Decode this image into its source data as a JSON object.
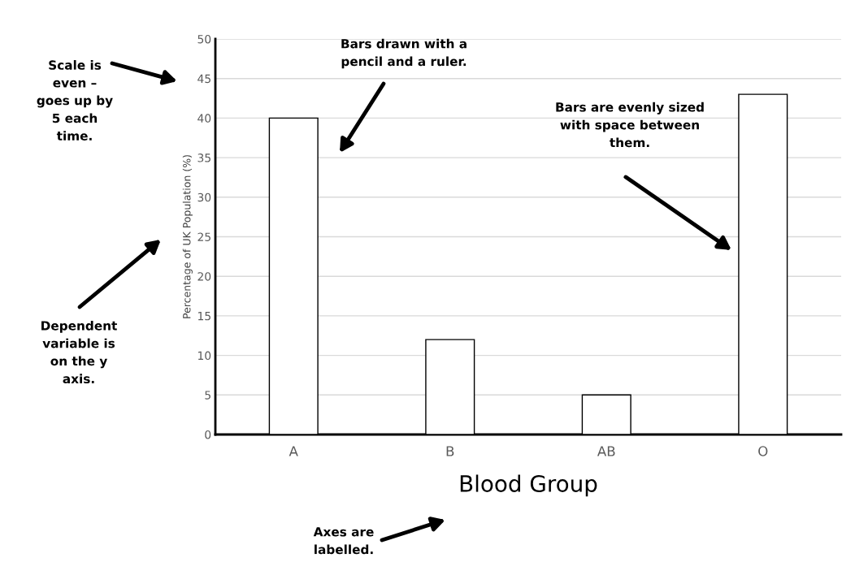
{
  "chart_data": {
    "type": "bar",
    "categories": [
      "A",
      "B",
      "AB",
      "O"
    ],
    "values": [
      40,
      12,
      5,
      43
    ],
    "color": "#ffffff",
    "xlabel": "Blood Group",
    "ylabel": "Percentage of UK Population (%)",
    "ylim": [
      0,
      50
    ],
    "yticks": [
      0,
      5,
      10,
      15,
      20,
      25,
      30,
      35,
      40,
      45,
      50
    ],
    "grid": "y",
    "annotations": [
      "Scale is\neven –\ngoes up by\n5 each\ntime.",
      "Bars drawn with a\npencil and a ruler.",
      "Bars are evenly sized\nwith space between\nthem.",
      "Dependent\nvariable is\non the y\naxis.",
      "Axes are\nlabelled."
    ]
  }
}
